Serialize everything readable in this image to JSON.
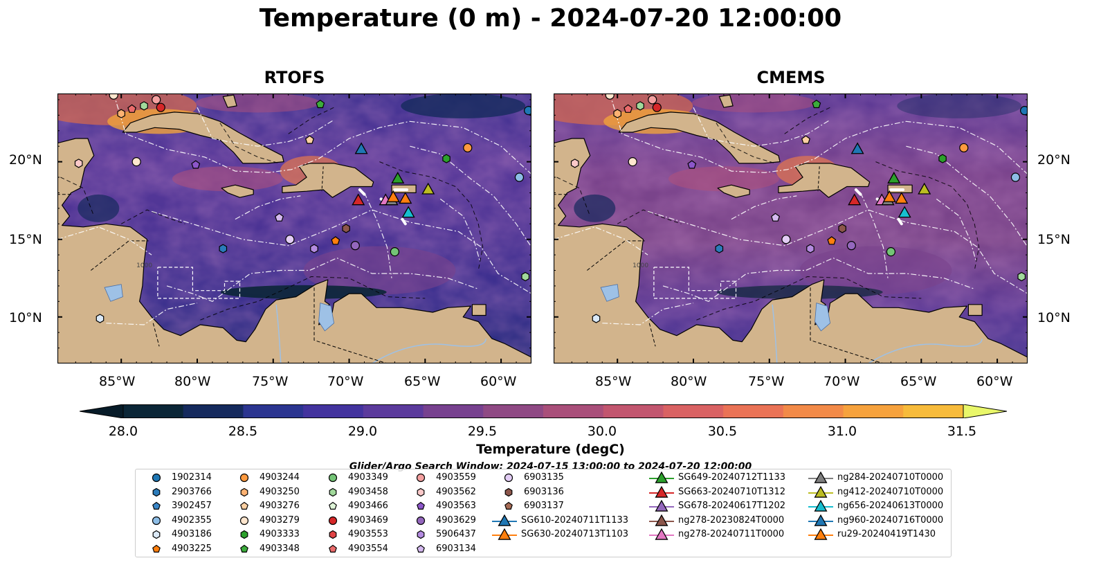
{
  "title": "Temperature (0 m) - 2024-07-20 12:00:00",
  "panels": [
    {
      "title": "RTOFS"
    },
    {
      "title": "CMEMS"
    }
  ],
  "lat_labels": [
    "20°N",
    "15°N",
    "10°N"
  ],
  "lon_labels": [
    "85°W",
    "80°W",
    "75°W",
    "70°W",
    "65°W",
    "60°W"
  ],
  "contour_label": "1000",
  "colorbar": {
    "label": "Temperature (degC)",
    "ticks": [
      "28.0",
      "28.5",
      "29.0",
      "29.5",
      "30.0",
      "30.5",
      "31.0",
      "31.5"
    ],
    "colors": [
      "#0b2637",
      "#152a5d",
      "#2b3590",
      "#43339e",
      "#5b3a9c",
      "#77418f",
      "#8f4984",
      "#a94f7a",
      "#c2566f",
      "#d96263",
      "#ea7356",
      "#f28a48",
      "#f6a23d",
      "#f7bb3b",
      "#f4d648"
    ],
    "extend_low_color": "#071b28",
    "extend_high_color": "#e9f76a"
  },
  "search_window": "Glider/Argo Search Window: 2024-07-15 13:00:00 to 2024-07-20 12:00:00",
  "legend": [
    {
      "label": "1902314",
      "marker": "circle",
      "color": "#1f77b4"
    },
    {
      "label": "2903766",
      "marker": "hexagon",
      "color": "#2b7bba"
    },
    {
      "label": "3902457",
      "marker": "pentagon",
      "color": "#3a86c7"
    },
    {
      "label": "4902355",
      "marker": "circle",
      "color": "#8dbde6"
    },
    {
      "label": "4903186",
      "marker": "hexagon",
      "color": "#dbe9f7"
    },
    {
      "label": "4903225",
      "marker": "pentagon",
      "color": "#ff7f0e"
    },
    {
      "label": "4903244",
      "marker": "circle",
      "color": "#fd9a3f"
    },
    {
      "label": "4903250",
      "marker": "hexagon",
      "color": "#fdb272"
    },
    {
      "label": "4903276",
      "marker": "pentagon",
      "color": "#fdd0a2"
    },
    {
      "label": "4903279",
      "marker": "circle",
      "color": "#fee6ce"
    },
    {
      "label": "4903333",
      "marker": "hexagon",
      "color": "#2ca02c"
    },
    {
      "label": "4903348",
      "marker": "pentagon",
      "color": "#3cac3c"
    },
    {
      "label": "4903349",
      "marker": "circle",
      "color": "#74c476"
    },
    {
      "label": "4903458",
      "marker": "hexagon",
      "color": "#a1d99b"
    },
    {
      "label": "4903466",
      "marker": "pentagon",
      "color": "#dff5d8"
    },
    {
      "label": "4903469",
      "marker": "circle",
      "color": "#d62728"
    },
    {
      "label": "4903553",
      "marker": "hexagon",
      "color": "#e04344"
    },
    {
      "label": "4903554",
      "marker": "pentagon",
      "color": "#ea6b6b"
    },
    {
      "label": "4903559",
      "marker": "circle",
      "color": "#f4a0a0"
    },
    {
      "label": "4903562",
      "marker": "hexagon",
      "color": "#fbc9c9"
    },
    {
      "label": "4903563",
      "marker": "pentagon",
      "color": "#8c56c9"
    },
    {
      "label": "4903629",
      "marker": "circle",
      "color": "#9467bd"
    },
    {
      "label": "5906437",
      "marker": "hexagon",
      "color": "#b48be0"
    },
    {
      "label": "6903134",
      "marker": "pentagon",
      "color": "#d4b9ef"
    },
    {
      "label": "6903135",
      "marker": "circle",
      "color": "#e3cdf5"
    },
    {
      "label": "6903136",
      "marker": "hexagon",
      "color": "#8c564b"
    },
    {
      "label": "6903137",
      "marker": "pentagon",
      "color": "#a66b55"
    },
    {
      "label": "SG610-20240711T1133",
      "marker": "triangle",
      "color": "#1f77b4"
    },
    {
      "label": "SG630-20240713T1103",
      "marker": "triangle",
      "color": "#ff7f0e"
    },
    {
      "label": "SG649-20240712T1133",
      "marker": "triangle",
      "color": "#2ca02c"
    },
    {
      "label": "SG663-20240710T1312",
      "marker": "triangle",
      "color": "#d62728"
    },
    {
      "label": "SG678-20240617T1202",
      "marker": "triangle",
      "color": "#9467bd"
    },
    {
      "label": "ng278-20230824T0000",
      "marker": "triangle",
      "color": "#8c564b"
    },
    {
      "label": "ng278-20240711T0000",
      "marker": "triangle",
      "color": "#e377c2"
    },
    {
      "label": "ng284-20240710T0000",
      "marker": "triangle",
      "color": "#7f7f7f"
    },
    {
      "label": "ng412-20240710T0000",
      "marker": "triangle",
      "color": "#bcbd22"
    },
    {
      "label": "ng656-20240613T0000",
      "marker": "triangle",
      "color": "#17becf"
    },
    {
      "label": "ng960-20240716T0000",
      "marker": "triangle",
      "color": "#1f77b4"
    },
    {
      "label": "ru29-20240419T1430",
      "marker": "triangle",
      "color": "#ff7f0e"
    }
  ],
  "map_points": [
    {
      "id": "4903279",
      "lon": -85.5,
      "lat": 24.3
    },
    {
      "id": "4903250",
      "lon": -85.0,
      "lat": 23.1
    },
    {
      "id": "4903554",
      "lon": -84.3,
      "lat": 23.4
    },
    {
      "id": "4903458",
      "lon": -83.5,
      "lat": 23.6
    },
    {
      "id": "4903559",
      "lon": -82.7,
      "lat": 24.0
    },
    {
      "id": "4903469",
      "lon": -82.4,
      "lat": 23.5
    },
    {
      "id": "4903348",
      "lon": -71.9,
      "lat": 23.7
    },
    {
      "id": "1902314",
      "lon": -58.2,
      "lat": 23.3
    },
    {
      "id": "4903562",
      "lon": -87.8,
      "lat": 19.9
    },
    {
      "id": "4903279",
      "lon": -84.0,
      "lat": 20.0
    },
    {
      "id": "4903563",
      "lon": -80.1,
      "lat": 19.8
    },
    {
      "id": "4903276",
      "lon": -72.6,
      "lat": 21.4
    },
    {
      "id": "SG610-20240711T1133",
      "lon": -69.2,
      "lat": 20.8
    },
    {
      "id": "4903244",
      "lon": -62.2,
      "lat": 20.9
    },
    {
      "id": "4903333",
      "lon": -63.6,
      "lat": 20.2
    },
    {
      "id": "4902355",
      "lon": -58.8,
      "lat": 19.0
    },
    {
      "id": "SG649-20240712T1133",
      "lon": -66.8,
      "lat": 18.9
    },
    {
      "id": "ng412-20240710T0000",
      "lon": -64.8,
      "lat": 18.2
    },
    {
      "id": "SG663-20240710T1312",
      "lon": -69.4,
      "lat": 17.5
    },
    {
      "id": "ng278-20240711T0000",
      "lon": -67.6,
      "lat": 17.5
    },
    {
      "id": "ng284-20240710T0000",
      "lon": -67.2,
      "lat": 17.5
    },
    {
      "id": "SG630-20240713T1103",
      "lon": -67.1,
      "lat": 17.7
    },
    {
      "id": "ru29-20240419T1430",
      "lon": -66.3,
      "lat": 17.6
    },
    {
      "id": "ng656-20240613T0000",
      "lon": -66.1,
      "lat": 16.7
    },
    {
      "id": "6903134",
      "lon": -74.6,
      "lat": 16.4
    },
    {
      "id": "6903136",
      "lon": -70.2,
      "lat": 15.7
    },
    {
      "id": "6903135",
      "lon": -73.9,
      "lat": 15.0
    },
    {
      "id": "4903225",
      "lon": -70.9,
      "lat": 14.9
    },
    {
      "id": "4903629",
      "lon": -69.6,
      "lat": 14.6
    },
    {
      "id": "5906437",
      "lon": -72.3,
      "lat": 14.4
    },
    {
      "id": "2903766",
      "lon": -78.3,
      "lat": 14.4
    },
    {
      "id": "4903349",
      "lon": -67.0,
      "lat": 14.2
    },
    {
      "id": "4903458",
      "lon": -58.4,
      "lat": 12.6
    },
    {
      "id": "4903186",
      "lon": -86.4,
      "lat": 9.9
    }
  ]
}
